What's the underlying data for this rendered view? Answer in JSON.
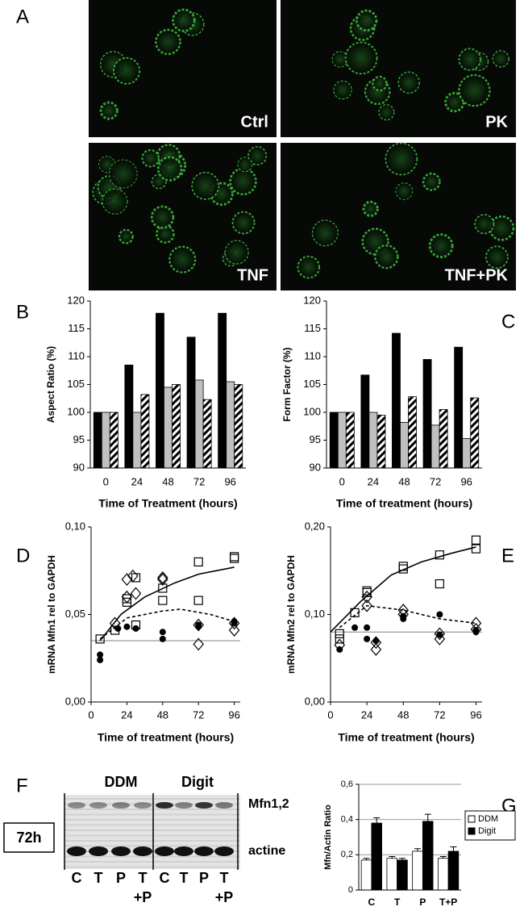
{
  "panels": [
    "A",
    "B",
    "C",
    "D",
    "E",
    "F",
    "G"
  ],
  "micrographs": [
    "Ctrl",
    "PK",
    "TNF",
    "TNF+PK"
  ],
  "blot": {
    "groups": [
      "DDM",
      "Digit"
    ],
    "bands": [
      "Mfn1,2",
      "actine"
    ],
    "time": "72h",
    "lanes": [
      "C",
      "T",
      "P",
      "T",
      "C",
      "T",
      "P",
      "T"
    ],
    "lane_suffix": [
      "+P",
      "+P"
    ]
  },
  "chart_data": [
    {
      "type": "bar",
      "ylabel": "Aspect Ratio (%)",
      "xlabel": "Time of Treatment (hours)",
      "categories": [
        "0",
        "24",
        "48",
        "72",
        "96"
      ],
      "ylim": [
        90,
        120
      ],
      "yticks": [
        90,
        95,
        100,
        105,
        110,
        115,
        120
      ],
      "grid": false,
      "series": [
        {
          "color": "#000000",
          "values": [
            100,
            108.5,
            117.8,
            113.5,
            117.8
          ]
        },
        {
          "color": "#c0c0c0",
          "values": [
            100,
            100,
            104.5,
            105.8,
            105.5
          ]
        },
        {
          "color": "#ffffff",
          "hatch": true,
          "values": [
            100,
            103.2,
            105,
            102.3,
            105
          ]
        }
      ]
    },
    {
      "type": "bar",
      "ylabel": "Form Factor (%)",
      "xlabel": "Time of treatment (hours)",
      "categories": [
        "0",
        "24",
        "48",
        "72",
        "96"
      ],
      "ylim": [
        90,
        120
      ],
      "yticks": [
        90,
        95,
        100,
        105,
        110,
        115,
        120
      ],
      "grid": false,
      "series": [
        {
          "color": "#000000",
          "values": [
            100,
            106.7,
            114.2,
            109.5,
            111.7
          ]
        },
        {
          "color": "#c0c0c0",
          "values": [
            100,
            100,
            98.2,
            97.7,
            95.3
          ]
        },
        {
          "color": "#ffffff",
          "hatch": true,
          "values": [
            100,
            99.5,
            102.8,
            100.5,
            102.6
          ]
        }
      ]
    },
    {
      "type": "scatter",
      "ylabel": "mRNA Mfn1  rel to  GAPDH",
      "xlabel": "Time of treatment (hours)",
      "xlim": [
        0,
        100
      ],
      "xticks": [
        0,
        24,
        48,
        72,
        96
      ],
      "ylim": [
        0,
        0.1
      ],
      "yticks": [
        {
          "value": 0,
          "label": "0,00"
        },
        {
          "value": 0.05,
          "label": "0,05"
        },
        {
          "value": 0.1,
          "label": "0,10"
        }
      ],
      "series": [
        {
          "mode": "line",
          "style": "thin",
          "color": "#808080",
          "x": [
            0,
            100
          ],
          "values": [
            0.035,
            0.035
          ]
        },
        {
          "mode": "line",
          "style": "solid",
          "color": "#000000",
          "x": [
            6,
            20,
            36,
            56,
            72,
            96
          ],
          "values": [
            0.035,
            0.05,
            0.06,
            0.068,
            0.073,
            0.077
          ]
        },
        {
          "mode": "line",
          "style": "dashed",
          "color": "#000000",
          "x": [
            6,
            24,
            48,
            60,
            80,
            96
          ],
          "values": [
            0.036,
            0.048,
            0.052,
            0.053,
            0.05,
            0.046
          ]
        },
        {
          "mode": "markers",
          "marker": "square",
          "color": "#000000",
          "x": [
            6,
            16,
            24,
            24,
            30,
            30,
            48,
            48,
            72,
            72,
            96,
            96
          ],
          "values": [
            0.036,
            0.041,
            0.057,
            0.059,
            0.044,
            0.071,
            0.065,
            0.058,
            0.08,
            0.058,
            0.083,
            0.082
          ]
        },
        {
          "mode": "markers",
          "marker": "diamond",
          "color": "#000000",
          "x": [
            16,
            24,
            24,
            28,
            30,
            48,
            48,
            72,
            72,
            96,
            96
          ],
          "values": [
            0.045,
            0.07,
            0.06,
            0.072,
            0.062,
            0.071,
            0.07,
            0.033,
            0.044,
            0.045,
            0.041
          ]
        },
        {
          "mode": "markers",
          "marker": "circle",
          "color": "#000000",
          "x": [
            6,
            6,
            18,
            24,
            30,
            48,
            48,
            72,
            72,
            96,
            96
          ],
          "values": [
            0.027,
            0.024,
            0.042,
            0.043,
            0.042,
            0.04,
            0.036,
            0.044,
            0.043,
            0.046,
            0.045
          ]
        }
      ]
    },
    {
      "type": "scatter",
      "ylabel": "mRNA Mfn2  rel to  GAPDH",
      "xlabel": "Time of treatment (hours)",
      "xlim": [
        0,
        100
      ],
      "xticks": [
        0,
        24,
        48,
        72,
        96
      ],
      "ylim": [
        0,
        0.2
      ],
      "yticks": [
        {
          "value": 0,
          "label": "0,00"
        },
        {
          "value": 0.1,
          "label": "0,10"
        },
        {
          "value": 0.2,
          "label": "0,20"
        }
      ],
      "series": [
        {
          "mode": "line",
          "style": "thin",
          "color": "#808080",
          "x": [
            0,
            100
          ],
          "values": [
            0.08,
            0.08
          ]
        },
        {
          "mode": "line",
          "style": "solid",
          "color": "#000000",
          "x": [
            0,
            20,
            40,
            60,
            80,
            96
          ],
          "values": [
            0.08,
            0.115,
            0.145,
            0.16,
            0.17,
            0.177
          ]
        },
        {
          "mode": "line",
          "style": "dashed",
          "color": "#000000",
          "x": [
            6,
            24,
            48,
            72,
            96
          ],
          "values": [
            0.085,
            0.11,
            0.105,
            0.095,
            0.09
          ]
        },
        {
          "mode": "markers",
          "marker": "square",
          "color": "#000000",
          "x": [
            6,
            6,
            16,
            24,
            24,
            48,
            48,
            72,
            72,
            96,
            96
          ],
          "values": [
            0.078,
            0.072,
            0.102,
            0.127,
            0.125,
            0.155,
            0.152,
            0.168,
            0.135,
            0.185,
            0.175
          ]
        },
        {
          "mode": "markers",
          "marker": "diamond",
          "color": "#000000",
          "x": [
            6,
            24,
            24,
            30,
            30,
            48,
            48,
            72,
            72,
            96,
            96
          ],
          "values": [
            0.065,
            0.12,
            0.11,
            0.06,
            0.068,
            0.105,
            0.1,
            0.072,
            0.078,
            0.09,
            0.083
          ]
        },
        {
          "mode": "markers",
          "marker": "circle",
          "color": "#000000",
          "x": [
            6,
            16,
            24,
            24,
            30,
            48,
            48,
            72,
            72,
            96,
            96
          ],
          "values": [
            0.06,
            0.085,
            0.085,
            0.072,
            0.07,
            0.098,
            0.095,
            0.1,
            0.077,
            0.082,
            0.08
          ]
        }
      ]
    },
    {
      "type": "bar",
      "ylabel": "Mfn/Actin Ratio",
      "categories": [
        "C",
        "T",
        "P",
        "T+P"
      ],
      "ylim": [
        0,
        0.6
      ],
      "yticks": [
        0,
        {
          "value": 0.2,
          "label": "0,2"
        },
        {
          "value": 0.4,
          "label": "0,4"
        },
        {
          "value": 0.6,
          "label": "0,6"
        }
      ],
      "grid": true,
      "legend": "right",
      "series": [
        {
          "name": "DDM",
          "color": "#ffffff",
          "values": [
            0.17,
            0.18,
            0.22,
            0.18
          ],
          "errors": [
            0.01,
            0.01,
            0.015,
            0.01
          ]
        },
        {
          "name": "Digit",
          "color": "#000000",
          "values": [
            0.38,
            0.17,
            0.39,
            0.22
          ],
          "errors": [
            0.03,
            0.01,
            0.04,
            0.025
          ]
        }
      ]
    }
  ]
}
